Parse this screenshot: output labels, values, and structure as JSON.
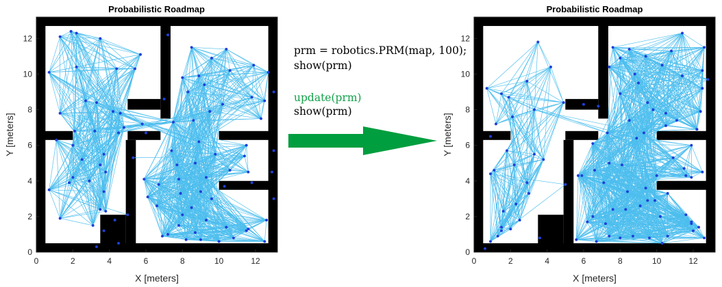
{
  "colors": {
    "obstacle": "#000000",
    "edge": "#4dbeee",
    "node": "#1f3fd9",
    "arrow": "#009e3f",
    "code_default": "#000000",
    "code_highlight": "#12a04a"
  },
  "code": {
    "lines": [
      {
        "text": "prm = robotics.PRM(map, 100);",
        "color": "#000000"
      },
      {
        "text": "show(prm)",
        "color": "#000000"
      },
      {
        "text": "update(prm)",
        "color": "#12a04a"
      },
      {
        "text": "show(prm)",
        "color": "#000000"
      }
    ]
  },
  "arrow": {
    "icon": "right-arrow-icon"
  },
  "chart_data": [
    {
      "type": "scatter",
      "title": "Probabilistic Roadmap",
      "xlabel": "X [meters]",
      "ylabel": "Y [meters]",
      "xlim": [
        0,
        13.2
      ],
      "ylim": [
        0,
        13.2
      ],
      "xticks": [
        0,
        2,
        4,
        6,
        8,
        10,
        12
      ],
      "yticks": [
        0,
        2,
        4,
        6,
        8,
        10,
        12
      ],
      "nodes": [
        [
          1.3,
          12.1
        ],
        [
          1.9,
          12.4
        ],
        [
          2.2,
          12.3
        ],
        [
          3.5,
          12.0
        ],
        [
          5.7,
          11.1
        ],
        [
          0.7,
          10.1
        ],
        [
          2.2,
          10.4
        ],
        [
          4.4,
          10.3
        ],
        [
          5.4,
          10.3
        ],
        [
          1.3,
          7.8
        ],
        [
          2.7,
          8.5
        ],
        [
          3.3,
          8.4
        ],
        [
          4.2,
          7.9
        ],
        [
          4.6,
          7.8
        ],
        [
          2.1,
          6.8
        ],
        [
          3.2,
          6.8
        ],
        [
          4.5,
          6.7
        ],
        [
          4.8,
          7.0
        ],
        [
          6.0,
          6.7
        ],
        [
          2.0,
          6.0
        ],
        [
          3.7,
          5.5
        ],
        [
          5.8,
          7.2
        ],
        [
          7.2,
          12.2
        ],
        [
          8.5,
          11.5
        ],
        [
          10.4,
          11.4
        ],
        [
          11.9,
          10.5
        ],
        [
          12.7,
          10.1
        ],
        [
          9.6,
          10.9
        ],
        [
          10.6,
          10.2
        ],
        [
          8.0,
          9.8
        ],
        [
          8.9,
          9.9
        ],
        [
          9.2,
          9.4
        ],
        [
          8.3,
          9.0
        ],
        [
          7.0,
          8.6
        ],
        [
          10.2,
          8.3
        ],
        [
          11.8,
          8.7
        ],
        [
          12.3,
          7.5
        ],
        [
          8.6,
          7.4
        ],
        [
          9.5,
          7.9
        ],
        [
          7.5,
          7.3
        ],
        [
          1.1,
          6.3
        ],
        [
          2.5,
          5.2
        ],
        [
          2.0,
          4.2
        ],
        [
          2.9,
          4.0
        ],
        [
          3.8,
          4.5
        ],
        [
          3.5,
          4.9
        ],
        [
          1.8,
          3.9
        ],
        [
          3.7,
          3.4
        ],
        [
          3.5,
          2.4
        ],
        [
          3.8,
          2.3
        ],
        [
          0.7,
          3.5
        ],
        [
          1.3,
          1.9
        ],
        [
          3.1,
          1.5
        ],
        [
          4.3,
          1.8
        ],
        [
          5.0,
          2.1
        ],
        [
          4.5,
          0.5
        ],
        [
          3.3,
          0.3
        ],
        [
          3.7,
          1.2
        ],
        [
          7.4,
          5.7
        ],
        [
          5.9,
          4.1
        ],
        [
          7.7,
          4.9
        ],
        [
          6.1,
          3.1
        ],
        [
          6.6,
          2.6
        ],
        [
          7.8,
          4.1
        ],
        [
          9.0,
          3.4
        ],
        [
          8.5,
          2.5
        ],
        [
          9.3,
          1.8
        ],
        [
          10.6,
          4.6
        ],
        [
          11.4,
          5.4
        ],
        [
          11.5,
          6.0
        ],
        [
          13.0,
          5.7
        ],
        [
          11.6,
          4.5
        ],
        [
          11.8,
          3.9
        ],
        [
          10.3,
          3.7
        ],
        [
          13.0,
          3.0
        ],
        [
          12.6,
          1.8
        ],
        [
          11.6,
          1.3
        ],
        [
          12.5,
          0.6
        ],
        [
          10.0,
          0.6
        ],
        [
          7.2,
          1.0
        ],
        [
          7.8,
          1.5
        ],
        [
          8.7,
          1.1
        ],
        [
          9.0,
          0.7
        ],
        [
          10.8,
          0.8
        ],
        [
          11.5,
          1.2
        ],
        [
          6.9,
          0.9
        ],
        [
          8.2,
          0.7
        ],
        [
          8.9,
          6.2
        ],
        [
          9.8,
          5.5
        ],
        [
          8.7,
          5.0
        ],
        [
          9.3,
          4.2
        ],
        [
          12.9,
          4.5
        ],
        [
          10.4,
          1.4
        ],
        [
          8.0,
          2.1
        ],
        [
          6.7,
          3.8
        ],
        [
          7.9,
          3.3
        ],
        [
          9.6,
          3.0
        ],
        [
          5.3,
          5.3
        ],
        [
          12.5,
          8.5
        ],
        [
          13.0,
          9.0
        ]
      ]
    },
    {
      "type": "scatter",
      "title": "Probabilistic Roadmap",
      "xlabel": "X [meters]",
      "ylabel": "Y [meters]",
      "xlim": [
        0,
        13.2
      ],
      "ylim": [
        0,
        13.2
      ],
      "xticks": [
        0,
        2,
        4,
        6,
        8,
        10,
        12
      ],
      "yticks": [
        0,
        2,
        4,
        6,
        8,
        10,
        12
      ],
      "nodes": [
        [
          0.7,
          9.2
        ],
        [
          2.9,
          9.6
        ],
        [
          3.5,
          11.8
        ],
        [
          4.2,
          10.4
        ],
        [
          7.6,
          11.5
        ],
        [
          8.5,
          11.4
        ],
        [
          9.4,
          11.0
        ],
        [
          10.8,
          11.3
        ],
        [
          11.4,
          12.3
        ],
        [
          12.6,
          11.5
        ],
        [
          12.5,
          10.2
        ],
        [
          12.8,
          9.7
        ],
        [
          10.3,
          10.5
        ],
        [
          8.0,
          10.9
        ],
        [
          7.4,
          10.4
        ],
        [
          8.8,
          10.0
        ],
        [
          11.4,
          9.9
        ],
        [
          12.5,
          9.2
        ],
        [
          1.5,
          8.9
        ],
        [
          1.9,
          8.7
        ],
        [
          1.2,
          7.2
        ],
        [
          2.1,
          7.6
        ],
        [
          0.9,
          6.5
        ],
        [
          3.3,
          8.0
        ],
        [
          4.9,
          8.4
        ],
        [
          6.0,
          8.3
        ],
        [
          6.8,
          8.2
        ],
        [
          8.5,
          7.4
        ],
        [
          8.9,
          6.4
        ],
        [
          9.3,
          6.7
        ],
        [
          10.5,
          7.8
        ],
        [
          11.1,
          7.4
        ],
        [
          12.4,
          7.9
        ],
        [
          12.2,
          6.9
        ],
        [
          10.5,
          7.1
        ],
        [
          9.5,
          8.4
        ],
        [
          8.0,
          8.9
        ],
        [
          9.0,
          9.5
        ],
        [
          0.9,
          4.4
        ],
        [
          1.1,
          4.6
        ],
        [
          2.2,
          4.9
        ],
        [
          1.8,
          5.7
        ],
        [
          3.3,
          5.5
        ],
        [
          3.8,
          5.2
        ],
        [
          2.9,
          3.9
        ],
        [
          3.0,
          3.3
        ],
        [
          2.3,
          2.7
        ],
        [
          1.6,
          2.3
        ],
        [
          2.5,
          1.8
        ],
        [
          1.5,
          1.2
        ],
        [
          1.3,
          0.9
        ],
        [
          0.9,
          0.6
        ],
        [
          0.6,
          0.2
        ],
        [
          3.6,
          0.8
        ],
        [
          5.0,
          3.8
        ],
        [
          5.9,
          4.3
        ],
        [
          6.6,
          4.6
        ],
        [
          7.4,
          5.0
        ],
        [
          8.1,
          4.9
        ],
        [
          7.1,
          3.9
        ],
        [
          8.4,
          3.4
        ],
        [
          9.4,
          3.6
        ],
        [
          10.0,
          4.3
        ],
        [
          10.9,
          5.3
        ],
        [
          11.9,
          4.2
        ],
        [
          11.5,
          4.7
        ],
        [
          12.5,
          4.5
        ],
        [
          10.6,
          3.3
        ],
        [
          10.2,
          2.0
        ],
        [
          11.6,
          2.1
        ],
        [
          11.9,
          1.7
        ],
        [
          12.3,
          1.4
        ],
        [
          12.0,
          1.2
        ],
        [
          12.6,
          0.8
        ],
        [
          10.6,
          0.9
        ],
        [
          10.3,
          0.5
        ],
        [
          9.6,
          0.8
        ],
        [
          8.7,
          0.9
        ],
        [
          8.0,
          0.8
        ],
        [
          7.4,
          0.9
        ],
        [
          6.7,
          0.6
        ],
        [
          8.3,
          2.4
        ],
        [
          9.1,
          2.6
        ],
        [
          9.9,
          2.9
        ],
        [
          7.2,
          1.6
        ],
        [
          7.6,
          2.4
        ],
        [
          6.2,
          1.7
        ],
        [
          5.6,
          0.7
        ],
        [
          5.7,
          4.3
        ],
        [
          6.5,
          6.1
        ],
        [
          7.3,
          6.7
        ],
        [
          9.8,
          8.0
        ],
        [
          11.9,
          6.0
        ],
        [
          12.2,
          6.9
        ],
        [
          11.6,
          4.3
        ],
        [
          9.5,
          2.9
        ],
        [
          6.5,
          2.0
        ],
        [
          11.9,
          1.6
        ],
        [
          2.0,
          1.3
        ],
        [
          1.5,
          1.4
        ]
      ]
    }
  ]
}
